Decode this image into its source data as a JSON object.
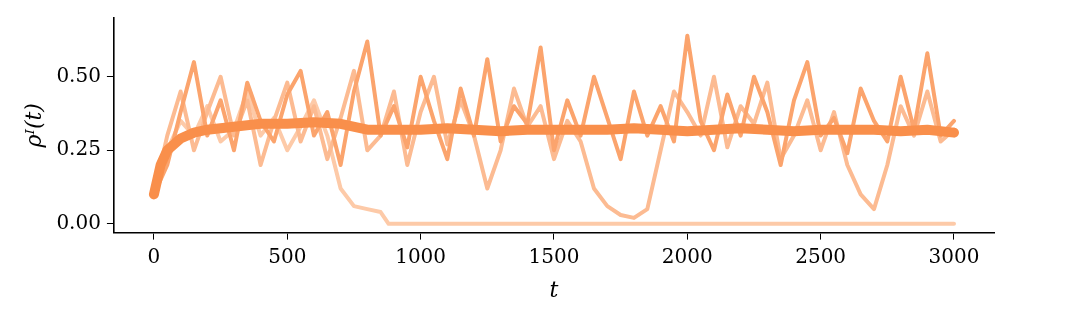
{
  "chart_data": {
    "type": "line",
    "xlabel": "t",
    "ylabel": "ρᴵ(t)",
    "xlim": [
      -150,
      3150
    ],
    "xticks": [
      0,
      500,
      1000,
      1500,
      2000,
      2500,
      3000
    ],
    "ylim": [
      -0.03,
      0.7
    ],
    "yticks": [
      {
        "value": 0,
        "label": "0.00"
      },
      0.25,
      {
        "value": 0.5,
        "label": "0.50"
      }
    ],
    "grid": false,
    "legend": false,
    "marker": "none",
    "line_style": "solid",
    "series": [
      {
        "color": "#fdcaa8",
        "x": [
          0,
          50,
          100,
          150,
          200,
          250,
          300,
          350,
          400,
          450,
          500,
          550,
          600,
          650,
          700,
          750,
          800,
          850,
          880,
          3000
        ],
        "values": [
          0.1,
          0.25,
          0.35,
          0.3,
          0.4,
          0.28,
          0.32,
          0.45,
          0.3,
          0.36,
          0.25,
          0.33,
          0.42,
          0.3,
          0.12,
          0.06,
          0.05,
          0.04,
          0.0,
          0.0
        ]
      },
      {
        "color": "#fcbb92",
        "x": [
          0,
          50,
          100,
          150,
          200,
          250,
          300,
          350,
          400,
          450,
          500,
          550,
          600,
          650,
          700,
          750,
          800,
          850,
          900,
          950,
          1000,
          1050,
          1100,
          1150,
          1200,
          1250,
          1300,
          1350,
          1400,
          1450,
          1500,
          1550,
          1600,
          1650,
          1700,
          1750,
          1800,
          1850,
          1900,
          1950,
          2000,
          2050,
          2100,
          2150,
          2200,
          2250,
          2300,
          2350,
          2400,
          2450,
          2500,
          2550,
          2600,
          2650,
          2700,
          2750,
          2800,
          2850,
          2900,
          2950,
          3000
        ],
        "values": [
          0.1,
          0.3,
          0.45,
          0.25,
          0.38,
          0.5,
          0.3,
          0.42,
          0.2,
          0.35,
          0.48,
          0.28,
          0.4,
          0.22,
          0.36,
          0.52,
          0.25,
          0.3,
          0.45,
          0.2,
          0.38,
          0.5,
          0.27,
          0.42,
          0.3,
          0.12,
          0.25,
          0.46,
          0.33,
          0.4,
          0.22,
          0.35,
          0.28,
          0.12,
          0.06,
          0.03,
          0.02,
          0.05,
          0.25,
          0.45,
          0.38,
          0.3,
          0.5,
          0.26,
          0.4,
          0.34,
          0.48,
          0.22,
          0.3,
          0.42,
          0.25,
          0.38,
          0.2,
          0.1,
          0.05,
          0.2,
          0.4,
          0.3,
          0.45,
          0.28,
          0.32
        ]
      },
      {
        "color": "#fba46d",
        "x": [
          0,
          50,
          100,
          150,
          200,
          250,
          300,
          350,
          400,
          450,
          500,
          550,
          600,
          650,
          700,
          750,
          800,
          850,
          900,
          950,
          1000,
          1050,
          1100,
          1150,
          1200,
          1250,
          1300,
          1350,
          1400,
          1450,
          1500,
          1550,
          1600,
          1650,
          1700,
          1750,
          1800,
          1850,
          1900,
          1950,
          2000,
          2050,
          2100,
          2150,
          2200,
          2250,
          2300,
          2350,
          2400,
          2450,
          2500,
          2550,
          2600,
          2650,
          2700,
          2750,
          2800,
          2850,
          2900,
          2950,
          3000
        ],
        "values": [
          0.1,
          0.2,
          0.38,
          0.55,
          0.3,
          0.42,
          0.25,
          0.48,
          0.35,
          0.28,
          0.44,
          0.52,
          0.3,
          0.38,
          0.2,
          0.45,
          0.62,
          0.3,
          0.4,
          0.26,
          0.5,
          0.35,
          0.22,
          0.46,
          0.3,
          0.56,
          0.28,
          0.4,
          0.34,
          0.6,
          0.25,
          0.42,
          0.3,
          0.5,
          0.36,
          0.22,
          0.45,
          0.3,
          0.4,
          0.28,
          0.64,
          0.35,
          0.25,
          0.44,
          0.3,
          0.5,
          0.38,
          0.2,
          0.42,
          0.55,
          0.3,
          0.36,
          0.24,
          0.46,
          0.35,
          0.28,
          0.5,
          0.32,
          0.58,
          0.3,
          0.35
        ]
      },
      {
        "color": "#f98f4b",
        "x": [
          0,
          25,
          50,
          100,
          150,
          200,
          300,
          400,
          500,
          600,
          700,
          800,
          900,
          1000,
          1100,
          1200,
          1300,
          1400,
          1500,
          1600,
          1700,
          1800,
          1900,
          2000,
          2100,
          2200,
          2300,
          2400,
          2500,
          2600,
          2700,
          2800,
          2900,
          3000
        ],
        "values": [
          0.1,
          0.2,
          0.25,
          0.29,
          0.31,
          0.32,
          0.33,
          0.34,
          0.34,
          0.345,
          0.34,
          0.32,
          0.32,
          0.32,
          0.325,
          0.32,
          0.315,
          0.32,
          0.32,
          0.32,
          0.32,
          0.325,
          0.32,
          0.315,
          0.32,
          0.325,
          0.32,
          0.315,
          0.32,
          0.32,
          0.32,
          0.315,
          0.32,
          0.31
        ]
      }
    ]
  }
}
